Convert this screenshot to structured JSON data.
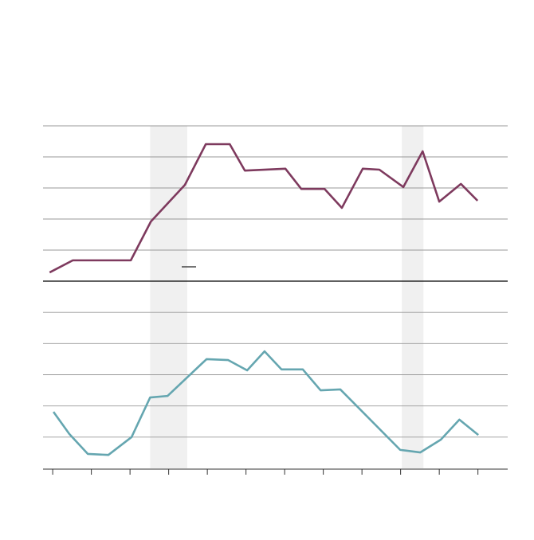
{
  "chart_data": [
    {
      "type": "line",
      "x": [
        -0.08,
        0.52,
        2.02,
        2.54,
        3.42,
        3.96,
        4.58,
        4.97,
        6.02,
        6.43,
        7.03,
        7.48,
        8.02,
        8.45,
        9.07,
        9.57,
        10.0,
        10.56,
        10.99
      ],
      "series": [
        {
          "color": "#7e3a5e",
          "values": [
            0.28,
            0.67,
            0.67,
            1.92,
            3.1,
            4.41,
            4.41,
            3.56,
            3.62,
            2.97,
            2.97,
            2.36,
            3.62,
            3.59,
            3.03,
            4.18,
            2.56,
            3.13,
            2.59
          ]
        }
      ],
      "xlim": [
        -0.25,
        11.77
      ],
      "ylim": [
        0,
        5
      ],
      "yticks": [
        0,
        1,
        2,
        3,
        4,
        5
      ],
      "grid": true,
      "shaded_ranges": [
        [
          2.52,
          3.48
        ],
        [
          9.03,
          9.59
        ]
      ],
      "shade_color": "#f0f0f0"
    },
    {
      "type": "line",
      "x": [
        0.02,
        0.43,
        0.91,
        1.44,
        2.04,
        2.52,
        2.97,
        3.98,
        4.54,
        5.03,
        5.48,
        5.92,
        6.47,
        6.93,
        7.44,
        8.99,
        9.51,
        10.04,
        10.52,
        11.01
      ],
      "series": [
        {
          "color": "#65a6b0",
          "values": [
            1.81,
            1.1,
            0.46,
            0.43,
            1.0,
            2.27,
            2.32,
            3.5,
            3.47,
            3.14,
            3.75,
            3.17,
            3.17,
            2.5,
            2.53,
            0.59,
            0.51,
            0.92,
            1.56,
            1.07
          ]
        }
      ],
      "xlim": [
        -0.25,
        11.77
      ],
      "ylim": [
        0,
        6
      ],
      "yticks": [
        1,
        2,
        3,
        4,
        5
      ],
      "grid": true,
      "xticks": [
        0,
        1,
        2,
        3,
        4,
        5,
        6,
        7,
        8,
        9,
        10,
        11
      ]
    }
  ]
}
